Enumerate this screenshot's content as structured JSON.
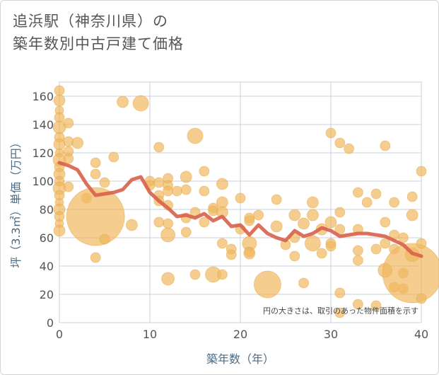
{
  "title_line1": "追浜駅（神奈川県）の",
  "title_line2": "築年数別中古戸建て価格",
  "chart_data": {
    "type": "scatter",
    "xlabel": "築年数（年）",
    "ylabel": "坪（3.3㎡）単価（万円）",
    "xlim": [
      0,
      40
    ],
    "ylim": [
      0,
      170
    ],
    "x_ticks": [
      "0",
      "10",
      "20",
      "30",
      "40"
    ],
    "y_ticks": [
      "0",
      "20",
      "40",
      "60",
      "80",
      "100",
      "120",
      "140",
      "160"
    ],
    "grid": true,
    "note": "円の大きさは、取引のあった物件面積を示す",
    "colors": {
      "bubble": "#f0b860",
      "line": "#d9614a",
      "grid": "#c8d0d8"
    },
    "points": [
      [
        0,
        164,
        7
      ],
      [
        0,
        157,
        8
      ],
      [
        0,
        150,
        6
      ],
      [
        0,
        145,
        7
      ],
      [
        0,
        138,
        9
      ],
      [
        0,
        131,
        7
      ],
      [
        0,
        126,
        8
      ],
      [
        0,
        120,
        6
      ],
      [
        0,
        115,
        9
      ],
      [
        0,
        110,
        7
      ],
      [
        0,
        105,
        8
      ],
      [
        0,
        100,
        7
      ],
      [
        0,
        95,
        9
      ],
      [
        0,
        90,
        7
      ],
      [
        0,
        85,
        6
      ],
      [
        0,
        80,
        8
      ],
      [
        0,
        75,
        7
      ],
      [
        0,
        70,
        6
      ],
      [
        0,
        65,
        8
      ],
      [
        1,
        141,
        7
      ],
      [
        1,
        128,
        7
      ],
      [
        1,
        121,
        7
      ],
      [
        1,
        116,
        7
      ],
      [
        1,
        96,
        7
      ],
      [
        2,
        127,
        8
      ],
      [
        3,
        88,
        7
      ],
      [
        4,
        113,
        7
      ],
      [
        4,
        105,
        7
      ],
      [
        4,
        75,
        41
      ],
      [
        4,
        46,
        7
      ],
      [
        5,
        99,
        7
      ],
      [
        5,
        59,
        7
      ],
      [
        6,
        117,
        7
      ],
      [
        7,
        156,
        8
      ],
      [
        8,
        69,
        8
      ],
      [
        9,
        155,
        11
      ],
      [
        10,
        100,
        7
      ],
      [
        10,
        97,
        7
      ],
      [
        11,
        124,
        7
      ],
      [
        11,
        99,
        7
      ],
      [
        11,
        90,
        7
      ],
      [
        11,
        86,
        7
      ],
      [
        11,
        71,
        7
      ],
      [
        12,
        102,
        7
      ],
      [
        12,
        97,
        7
      ],
      [
        12,
        93,
        7
      ],
      [
        12,
        83,
        7
      ],
      [
        12,
        70,
        7
      ],
      [
        12,
        62,
        10
      ],
      [
        12,
        31,
        9
      ],
      [
        13,
        93,
        7
      ],
      [
        14,
        103,
        8
      ],
      [
        14,
        94,
        7
      ],
      [
        14,
        74,
        7
      ],
      [
        14,
        64,
        7
      ],
      [
        15,
        132,
        11
      ],
      [
        15,
        78,
        7
      ],
      [
        15,
        34,
        7
      ],
      [
        16,
        107,
        7
      ],
      [
        16,
        93,
        7
      ],
      [
        16,
        71,
        7
      ],
      [
        17,
        81,
        7
      ],
      [
        17,
        79,
        7
      ],
      [
        17,
        34,
        11
      ],
      [
        18,
        98,
        8
      ],
      [
        18,
        85,
        8
      ],
      [
        18,
        78,
        8
      ],
      [
        18,
        56,
        7
      ],
      [
        18,
        34,
        7
      ],
      [
        19,
        52,
        7
      ],
      [
        19,
        48,
        7
      ],
      [
        20,
        88,
        7
      ],
      [
        20,
        66,
        7
      ],
      [
        21,
        74,
        7
      ],
      [
        21,
        72,
        7
      ],
      [
        21,
        56,
        10
      ],
      [
        21,
        50,
        7
      ],
      [
        21,
        49,
        8
      ],
      [
        22,
        76,
        7
      ],
      [
        23,
        27,
        19
      ],
      [
        24,
        87,
        7
      ],
      [
        24,
        68,
        8
      ],
      [
        25,
        55,
        7
      ],
      [
        26,
        76,
        8
      ],
      [
        26,
        60,
        7
      ],
      [
        26,
        47,
        7
      ],
      [
        27,
        70,
        8
      ],
      [
        27,
        28,
        7
      ],
      [
        28,
        85,
        8
      ],
      [
        28,
        76,
        8
      ],
      [
        28,
        56,
        11
      ],
      [
        29,
        66,
        8
      ],
      [
        29,
        49,
        7
      ],
      [
        30,
        134,
        7
      ],
      [
        30,
        71,
        8
      ],
      [
        30,
        56,
        7
      ],
      [
        30,
        54,
        7
      ],
      [
        31,
        127,
        7
      ],
      [
        31,
        78,
        7
      ],
      [
        31,
        66,
        7
      ],
      [
        31,
        21,
        7
      ],
      [
        31,
        7,
        7
      ],
      [
        32,
        123,
        7
      ],
      [
        33,
        92,
        7
      ],
      [
        33,
        66,
        7
      ],
      [
        33,
        51,
        7
      ],
      [
        33,
        44,
        7
      ],
      [
        33,
        13,
        7
      ],
      [
        34,
        85,
        7
      ],
      [
        35,
        91,
        7
      ],
      [
        35,
        52,
        7
      ],
      [
        35,
        12,
        7
      ],
      [
        36,
        125,
        7
      ],
      [
        36,
        71,
        7
      ],
      [
        36,
        56,
        7
      ],
      [
        36,
        37,
        10
      ],
      [
        37,
        85,
        7
      ],
      [
        37,
        62,
        7
      ],
      [
        37,
        52,
        7
      ],
      [
        37,
        25,
        7
      ],
      [
        38,
        60,
        7
      ],
      [
        38,
        35,
        7
      ],
      [
        38,
        24,
        7
      ],
      [
        39,
        89,
        7
      ],
      [
        39,
        76,
        8
      ],
      [
        39,
        48,
        10
      ],
      [
        39,
        35,
        42
      ],
      [
        40,
        107,
        7
      ],
      [
        40,
        56,
        7
      ],
      [
        40,
        17,
        7
      ]
    ],
    "trend": {
      "x": [
        0,
        1,
        2,
        3,
        4,
        5,
        6,
        7,
        8,
        9,
        10,
        11,
        12,
        13,
        14,
        15,
        16,
        17,
        18,
        19,
        20,
        21,
        22,
        23,
        24,
        25,
        26,
        27,
        28,
        29,
        30,
        31,
        32,
        33,
        34,
        35,
        36,
        37,
        38,
        39,
        40
      ],
      "y": [
        113,
        111,
        108,
        98,
        90,
        91,
        92,
        94,
        101,
        103,
        92,
        86,
        81,
        75,
        76,
        74,
        77,
        72,
        75,
        68,
        69,
        62,
        69,
        63,
        60,
        58,
        65,
        61,
        63,
        67,
        65,
        61,
        62,
        63,
        63,
        62,
        61,
        58,
        55,
        49,
        47
      ]
    }
  }
}
